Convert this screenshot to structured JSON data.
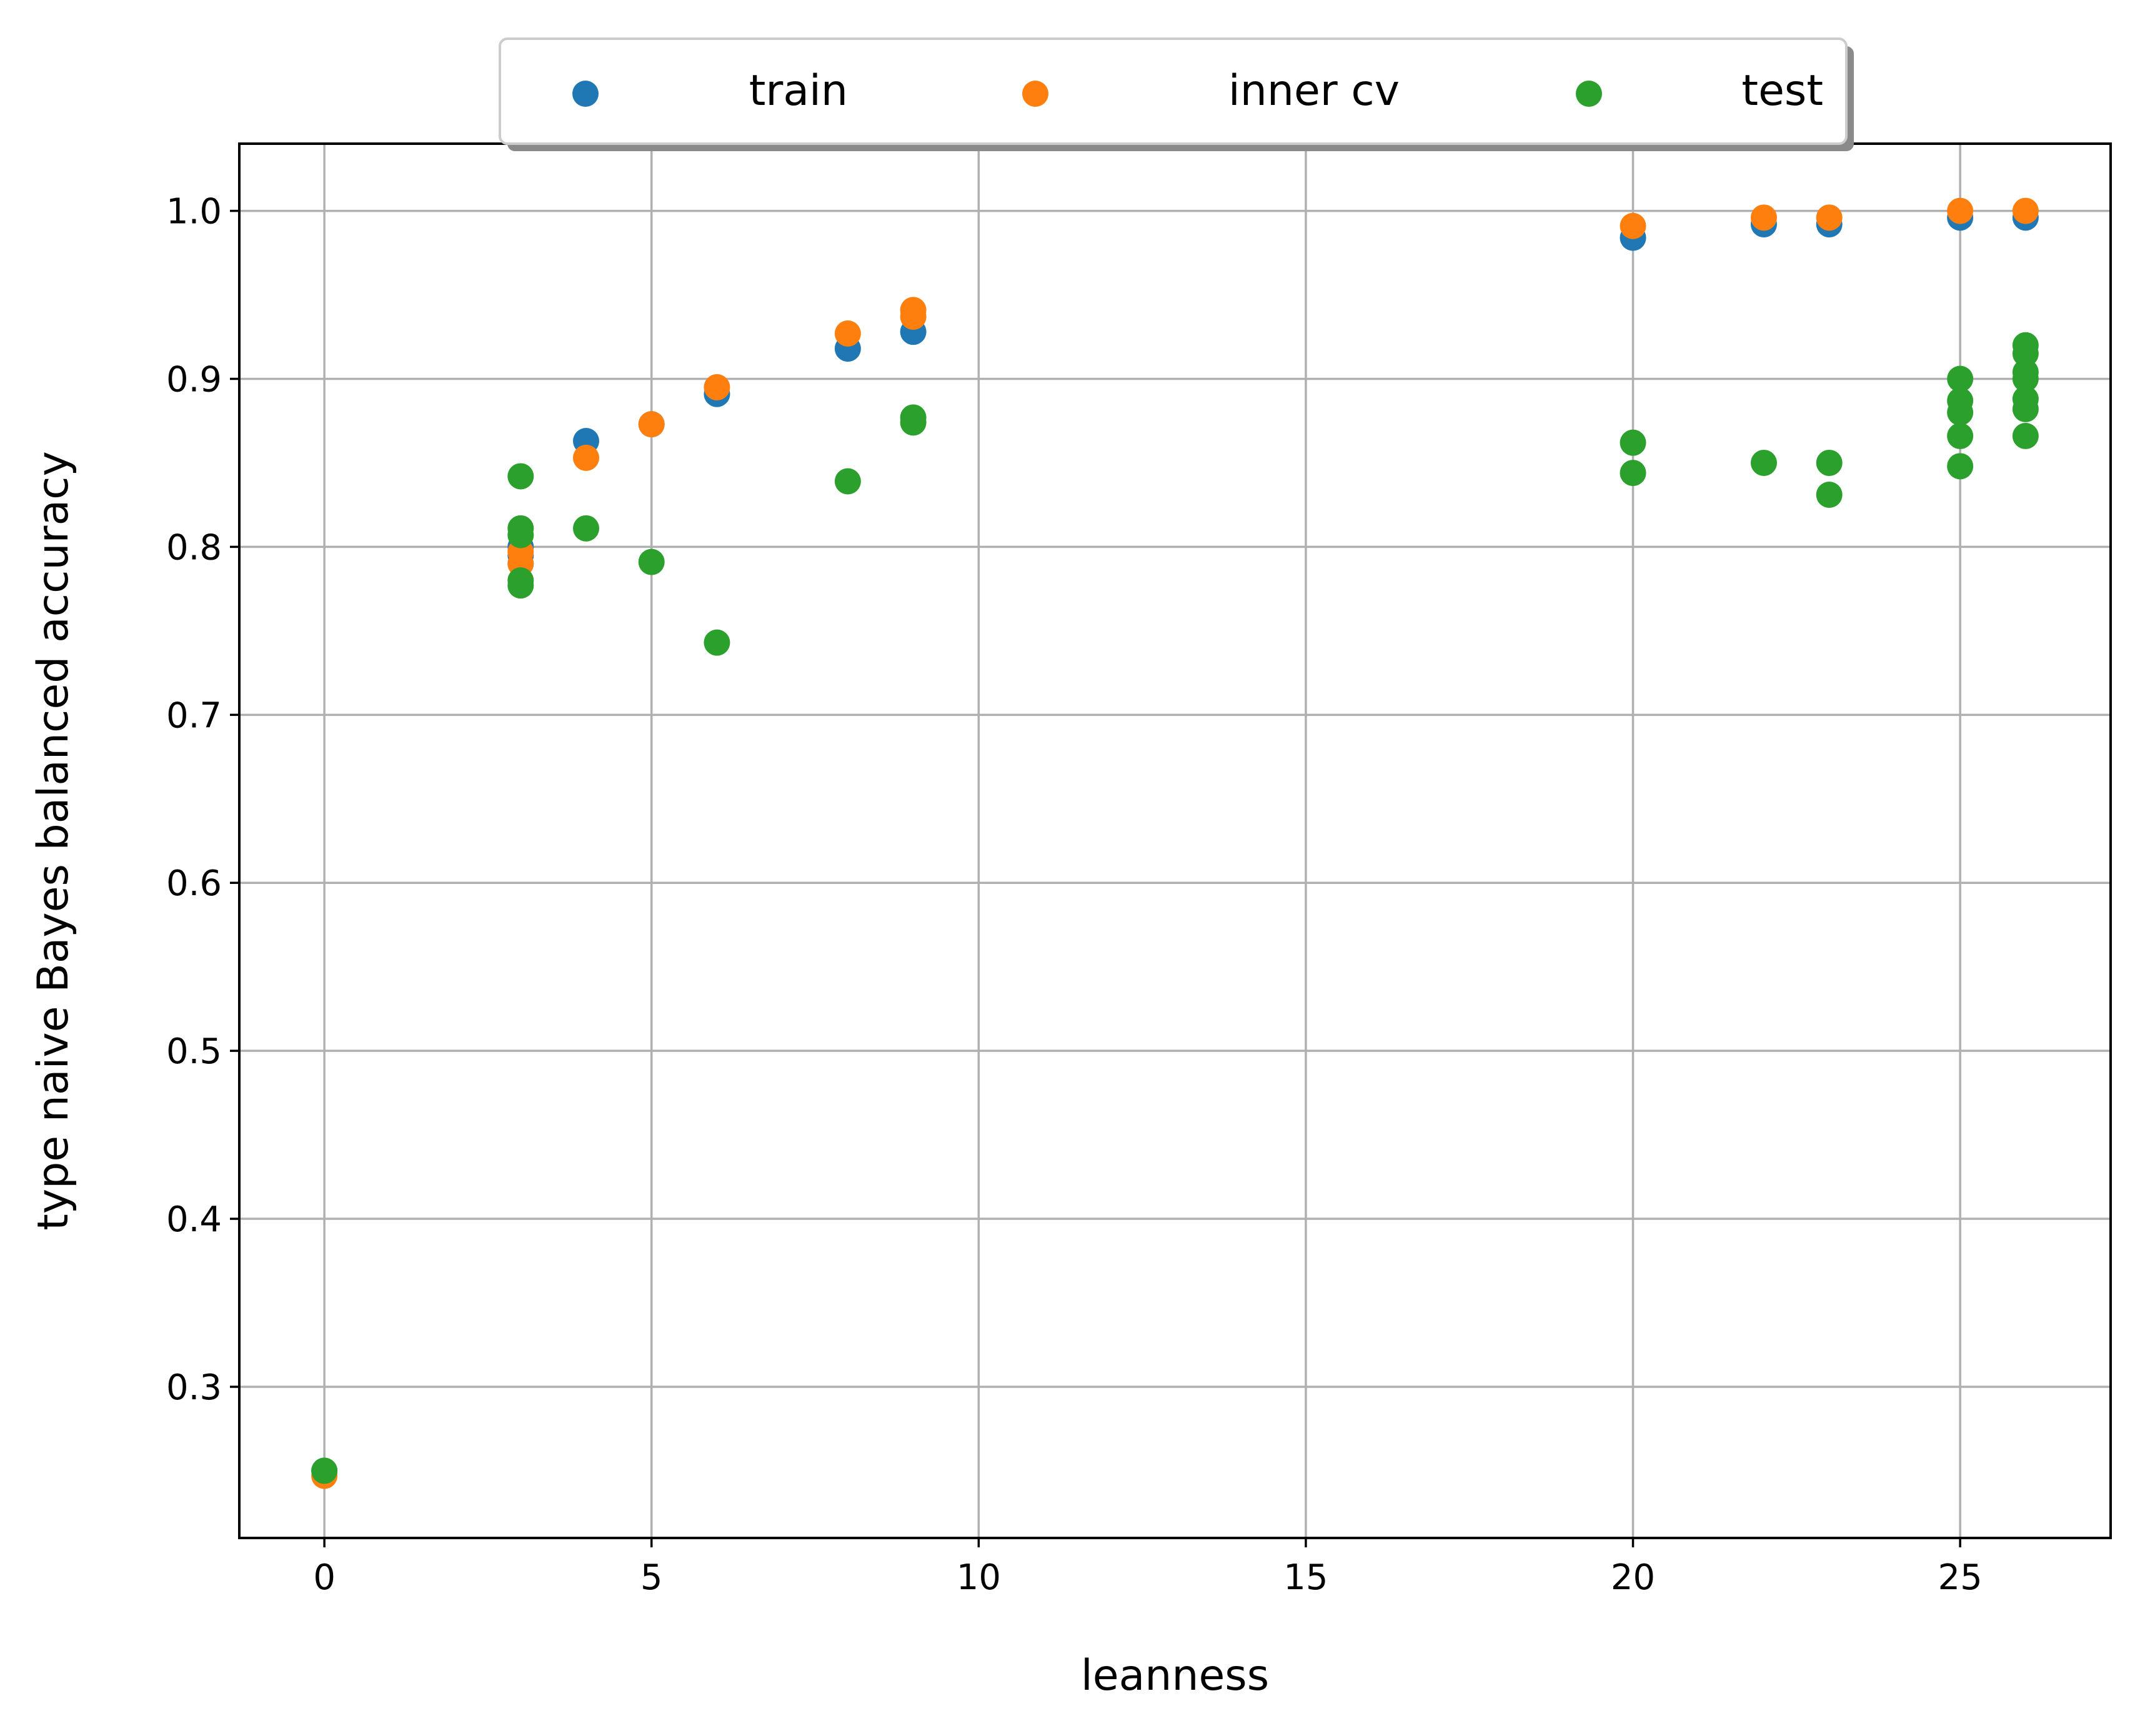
{
  "chart_data": {
    "type": "scatter",
    "title": "",
    "xlabel": "leanness",
    "ylabel": "type naive Bayes balanced accuracy",
    "xlim": [
      -1.3,
      27.3
    ],
    "ylim": [
      0.21,
      1.04
    ],
    "xticks": [
      0,
      5,
      10,
      15,
      20,
      25
    ],
    "xtick_labels": [
      "0",
      "5",
      "10",
      "15",
      "20",
      "25"
    ],
    "yticks": [
      0.3,
      0.4,
      0.5,
      0.6,
      0.7,
      0.8,
      0.9,
      1.0
    ],
    "ytick_labels": [
      "0.3",
      "0.4",
      "0.5",
      "0.6",
      "0.7",
      "0.8",
      "0.9",
      "1.0"
    ],
    "grid": true,
    "legend_position": "top-center, outside plot, 3 columns",
    "series": [
      {
        "name": "train",
        "color": "#1f77b4",
        "points": [
          [
            0,
            0.25
          ],
          [
            3,
            0.79
          ],
          [
            3,
            0.8
          ],
          [
            3,
            0.795
          ],
          [
            4,
            0.863
          ],
          [
            5,
            0.873
          ],
          [
            6,
            0.891
          ],
          [
            8,
            0.918
          ],
          [
            9,
            0.928
          ],
          [
            20,
            0.984
          ],
          [
            22,
            0.992
          ],
          [
            23,
            0.992
          ],
          [
            25,
            0.996
          ],
          [
            26,
            0.996
          ]
        ]
      },
      {
        "name": "inner cv",
        "color": "#ff7f0e",
        "points": [
          [
            0,
            0.247
          ],
          [
            3,
            0.79
          ],
          [
            3,
            0.797
          ],
          [
            4,
            0.853
          ],
          [
            5,
            0.873
          ],
          [
            6,
            0.895
          ],
          [
            8,
            0.927
          ],
          [
            9,
            0.937
          ],
          [
            9,
            0.941
          ],
          [
            20,
            0.991
          ],
          [
            22,
            0.996
          ],
          [
            23,
            0.996
          ],
          [
            25,
            1.0
          ],
          [
            26,
            1.0
          ]
        ]
      },
      {
        "name": "test",
        "color": "#2ca02c",
        "points": [
          [
            0,
            0.25
          ],
          [
            3,
            0.842
          ],
          [
            3,
            0.811
          ],
          [
            3,
            0.807
          ],
          [
            3,
            0.78
          ],
          [
            3,
            0.777
          ],
          [
            4,
            0.811
          ],
          [
            5,
            0.791
          ],
          [
            6,
            0.743
          ],
          [
            8,
            0.839
          ],
          [
            9,
            0.874
          ],
          [
            9,
            0.877
          ],
          [
            20,
            0.862
          ],
          [
            20,
            0.844
          ],
          [
            22,
            0.85
          ],
          [
            23,
            0.85
          ],
          [
            23,
            0.831
          ],
          [
            25,
            0.9
          ],
          [
            25,
            0.887
          ],
          [
            25,
            0.88
          ],
          [
            25,
            0.866
          ],
          [
            25,
            0.848
          ],
          [
            26,
            0.92
          ],
          [
            26,
            0.915
          ],
          [
            26,
            0.904
          ],
          [
            26,
            0.9
          ],
          [
            26,
            0.888
          ],
          [
            26,
            0.882
          ],
          [
            26,
            0.866
          ]
        ]
      }
    ]
  }
}
